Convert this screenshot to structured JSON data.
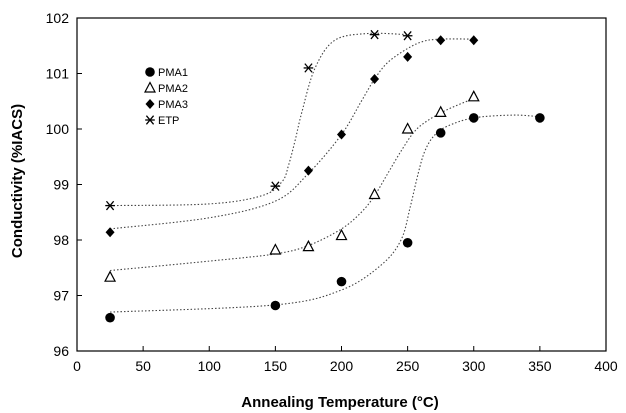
{
  "chart_data": {
    "type": "scatter",
    "xlabel": "Annealing Temperature (°C)",
    "ylabel": "Conductivity (%IACS)",
    "xlim": [
      0,
      400
    ],
    "ylim": [
      96,
      102
    ],
    "xticks": [
      "0",
      "50",
      "100",
      "150",
      "200",
      "250",
      "300",
      "350",
      "400"
    ],
    "yticks": [
      "96",
      "97",
      "98",
      "99",
      "100",
      "101",
      "102"
    ],
    "grid": false,
    "legend_position": "top-left",
    "trendlines": "dotted",
    "series": [
      {
        "name": "PMA1",
        "marker": "filled-circle",
        "x": [
          25,
          150,
          200,
          250,
          275,
          300,
          350
        ],
        "y": [
          96.6,
          96.82,
          97.25,
          97.95,
          99.93,
          100.2,
          100.2
        ],
        "curve_x": [
          25,
          150,
          200,
          230,
          245,
          252,
          258,
          263,
          270,
          280,
          300,
          330,
          350
        ],
        "curve_y": [
          96.7,
          96.83,
          97.1,
          97.55,
          98.0,
          98.6,
          99.2,
          99.6,
          99.88,
          100.05,
          100.2,
          100.25,
          100.22
        ]
      },
      {
        "name": "PMA2",
        "marker": "open-triangle",
        "x": [
          25,
          150,
          175,
          200,
          225,
          250,
          275,
          300
        ],
        "y": [
          97.33,
          97.82,
          97.88,
          98.08,
          98.82,
          100.0,
          100.3,
          100.58
        ],
        "curve_x": [
          25,
          100,
          150,
          175,
          200,
          215,
          225,
          235,
          245,
          255,
          265,
          280,
          300
        ],
        "curve_y": [
          97.45,
          97.62,
          97.75,
          97.9,
          98.2,
          98.5,
          98.8,
          99.2,
          99.6,
          99.95,
          100.15,
          100.35,
          100.55
        ]
      },
      {
        "name": "PMA3",
        "marker": "filled-diamond",
        "x": [
          25,
          175,
          200,
          225,
          250,
          275,
          300
        ],
        "y": [
          98.14,
          99.25,
          99.9,
          100.9,
          101.3,
          101.6,
          101.6
        ],
        "curve_x": [
          25,
          100,
          150,
          175,
          200,
          215,
          225,
          235,
          250,
          262,
          275,
          300
        ],
        "curve_y": [
          98.2,
          98.4,
          98.7,
          99.2,
          99.9,
          100.5,
          100.9,
          101.2,
          101.45,
          101.58,
          101.62,
          101.62
        ]
      },
      {
        "name": "ETP",
        "marker": "asterisk",
        "x": [
          25,
          150,
          175,
          225,
          250
        ],
        "y": [
          98.62,
          98.97,
          101.1,
          101.7,
          101.68
        ],
        "curve_x": [
          25,
          100,
          140,
          155,
          160,
          165,
          170,
          180,
          195,
          220,
          250
        ],
        "curve_y": [
          98.62,
          98.65,
          98.8,
          99.05,
          99.35,
          99.8,
          100.3,
          101.1,
          101.6,
          101.72,
          101.7
        ]
      }
    ]
  }
}
